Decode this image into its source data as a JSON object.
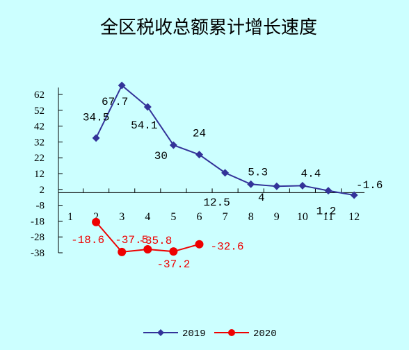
{
  "chart_data": {
    "type": "line",
    "title": "全区税收总额累计增长速度",
    "xlabel": "",
    "ylabel": "",
    "x": [
      "1",
      "2",
      "3",
      "4",
      "5",
      "6",
      "7",
      "8",
      "9",
      "10",
      "11",
      "12"
    ],
    "y_ticks": [
      "62",
      "52",
      "42",
      "32",
      "22",
      "12",
      "2",
      "-8",
      "-18",
      "-28",
      "-38"
    ],
    "ylim": [
      -38,
      62
    ],
    "grid": false,
    "legend_position": "bottom",
    "series": [
      {
        "name": "2019",
        "color": "#333399",
        "marker": "diamond",
        "values": [
          null,
          34.5,
          67.7,
          54.1,
          30,
          24,
          12.5,
          5.3,
          4,
          4.4,
          1.2,
          -1.6
        ],
        "labels": [
          "",
          "34.5",
          "67.7",
          "54.1",
          "30",
          "24",
          "12.5",
          "5.3",
          "4",
          "4.4",
          "1.2",
          "-1.6"
        ]
      },
      {
        "name": "2020",
        "color": "#ee0000",
        "marker": "circle",
        "values": [
          null,
          -18.6,
          -37.5,
          -35.8,
          -37.2,
          -32.6,
          null,
          null,
          null,
          null,
          null,
          null
        ],
        "labels": [
          "",
          "-18.6",
          "-37.5",
          "-35.8",
          "-37.2",
          "-32.6",
          "",
          "",
          "",
          "",
          "",
          ""
        ]
      }
    ]
  }
}
